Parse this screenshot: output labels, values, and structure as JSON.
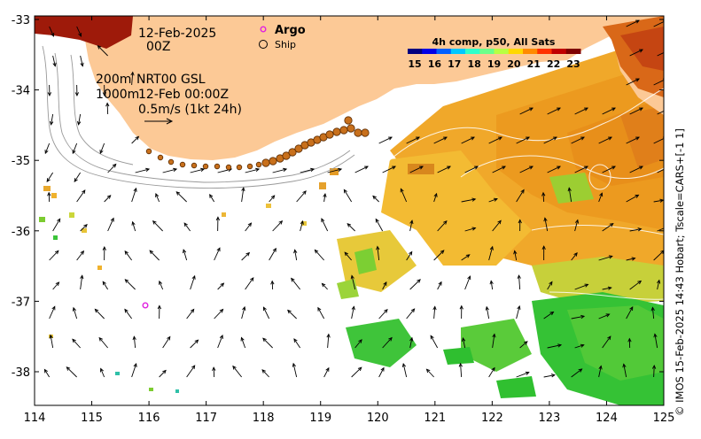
{
  "map": {
    "date": "12-Feb-2025",
    "time": "00Z",
    "depth_labels": [
      "200m",
      "1000m"
    ],
    "product": "NRT00 GSL",
    "valid": "12-Feb 00:00Z",
    "scale_label": "0.5m/s (1kt 24h)",
    "credit": "© IMOS 15-Feb-2025 14:43 Hobart; Tscale=CARS+[-1 1]"
  },
  "legend": {
    "argo_label": "Argo",
    "ship_label": "Ship",
    "colorbar_title": "4h comp, p50, All Sats",
    "colorbar_ticks": [
      "15",
      "16",
      "17",
      "18",
      "19",
      "20",
      "21",
      "22",
      "23"
    ],
    "colorbar_colors": [
      "#00007f",
      "#0000e6",
      "#0060ff",
      "#00c8ff",
      "#2fffca",
      "#6cff8a",
      "#b8ff43",
      "#ffd800",
      "#ff8a00",
      "#ff3200",
      "#c00000",
      "#7f0000"
    ]
  },
  "axes": {
    "lon_ticks": [
      "114",
      "115",
      "116",
      "117",
      "118",
      "119",
      "120",
      "121",
      "122",
      "123",
      "124",
      "125"
    ],
    "lat_ticks": [
      "-33",
      "-34",
      "-35",
      "-36",
      "-37",
      "-38"
    ]
  },
  "colors": {
    "land": "#fcc996",
    "argo": "#e020e0",
    "ship": "#c86a18",
    "warm": "#f0aa25",
    "cool": "#2ec52e"
  }
}
